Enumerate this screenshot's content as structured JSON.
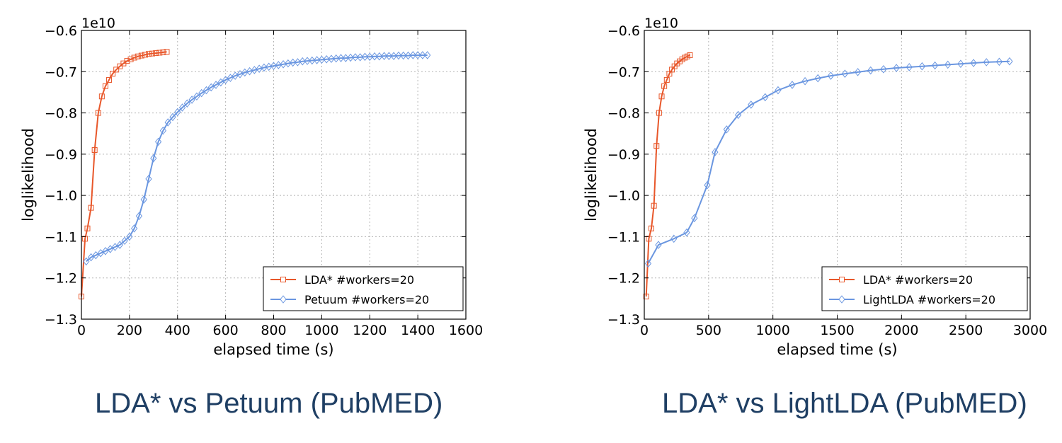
{
  "chart_data": [
    {
      "type": "line",
      "caption": "LDA* vs Petuum (PubMED)",
      "xlabel": "elapsed time (s)",
      "ylabel": "loglikelihood",
      "offset_text": "1e10",
      "xlim": [
        0,
        1600
      ],
      "ylim": [
        -1.3,
        -0.6
      ],
      "xticks": [
        0,
        200,
        400,
        600,
        800,
        1000,
        1200,
        1400,
        1600
      ],
      "xtick_labels": [
        "0",
        "200",
        "400",
        "600",
        "800",
        "1000",
        "1200",
        "1400",
        "1600"
      ],
      "yticks": [
        -1.3,
        -1.2,
        -1.1,
        -1.0,
        -0.9,
        -0.8,
        -0.7,
        -0.6
      ],
      "ytick_labels": [
        "−1.3",
        "−1.2",
        "−1.1",
        "−1.0",
        "−0.9",
        "−0.8",
        "−0.7",
        "−0.6"
      ],
      "grid": true,
      "legend_position": "lower-right",
      "series": [
        {
          "name": "LDA* #workers=20",
          "color": "#e8572a",
          "marker": "square",
          "x": [
            0,
            15,
            25,
            40,
            55,
            70,
            85,
            100,
            115,
            130,
            145,
            160,
            175,
            190,
            205,
            220,
            235,
            250,
            265,
            280,
            295,
            310,
            325,
            340,
            355
          ],
          "y": [
            -1.245,
            -1.105,
            -1.08,
            -1.03,
            -0.89,
            -0.8,
            -0.76,
            -0.735,
            -0.72,
            -0.705,
            -0.695,
            -0.687,
            -0.68,
            -0.674,
            -0.67,
            -0.666,
            -0.663,
            -0.661,
            -0.659,
            -0.657,
            -0.656,
            -0.655,
            -0.654,
            -0.653,
            -0.652
          ]
        },
        {
          "name": "Petuum #workers=20",
          "color": "#6a96e0",
          "marker": "diamond",
          "x": [
            20,
            40,
            60,
            80,
            100,
            120,
            140,
            160,
            180,
            200,
            220,
            240,
            260,
            280,
            300,
            320,
            340,
            360,
            380,
            400,
            420,
            440,
            460,
            480,
            500,
            520,
            540,
            560,
            580,
            600,
            620,
            640,
            660,
            680,
            700,
            720,
            740,
            760,
            780,
            800,
            820,
            840,
            860,
            880,
            900,
            920,
            940,
            960,
            980,
            1000,
            1020,
            1040,
            1060,
            1080,
            1100,
            1120,
            1140,
            1160,
            1180,
            1200,
            1220,
            1240,
            1260,
            1280,
            1300,
            1320,
            1340,
            1360,
            1380,
            1400,
            1420,
            1440
          ],
          "y": [
            -1.16,
            -1.15,
            -1.145,
            -1.14,
            -1.135,
            -1.13,
            -1.125,
            -1.12,
            -1.11,
            -1.1,
            -1.08,
            -1.05,
            -1.01,
            -0.96,
            -0.91,
            -0.87,
            -0.843,
            -0.823,
            -0.81,
            -0.798,
            -0.787,
            -0.777,
            -0.768,
            -0.76,
            -0.752,
            -0.745,
            -0.738,
            -0.732,
            -0.726,
            -0.72,
            -0.715,
            -0.71,
            -0.706,
            -0.702,
            -0.699,
            -0.696,
            -0.693,
            -0.69,
            -0.688,
            -0.686,
            -0.684,
            -0.682,
            -0.68,
            -0.678,
            -0.677,
            -0.675,
            -0.674,
            -0.673,
            -0.672,
            -0.671,
            -0.67,
            -0.669,
            -0.668,
            -0.667,
            -0.667,
            -0.666,
            -0.665,
            -0.665,
            -0.664,
            -0.664,
            -0.663,
            -0.663,
            -0.662,
            -0.662,
            -0.662,
            -0.661,
            -0.661,
            -0.661,
            -0.66,
            -0.66,
            -0.66,
            -0.66
          ]
        }
      ]
    },
    {
      "type": "line",
      "caption": "LDA* vs LightLDA (PubMED)",
      "xlabel": "elapsed time (s)",
      "ylabel": "loglikelihood",
      "offset_text": "1e10",
      "xlim": [
        0,
        3000
      ],
      "ylim": [
        -1.3,
        -0.6
      ],
      "xticks": [
        0,
        500,
        1000,
        1500,
        2000,
        2500,
        3000
      ],
      "xtick_labels": [
        "0",
        "500",
        "1000",
        "1500",
        "2000",
        "2500",
        "3000"
      ],
      "yticks": [
        -1.3,
        -1.2,
        -1.1,
        -1.0,
        -0.9,
        -0.8,
        -0.7,
        -0.6
      ],
      "ytick_labels": [
        "−1.3",
        "−1.2",
        "−1.1",
        "−1.0",
        "−0.9",
        "−0.8",
        "−0.7",
        "−0.6"
      ],
      "grid": true,
      "legend_position": "lower-right",
      "series": [
        {
          "name": "LDA* #workers=20",
          "color": "#e8572a",
          "marker": "square",
          "x": [
            15,
            35,
            55,
            75,
            95,
            115,
            135,
            155,
            175,
            195,
            215,
            235,
            255,
            275,
            295,
            315,
            335,
            355
          ],
          "y": [
            -1.245,
            -1.105,
            -1.08,
            -1.025,
            -0.88,
            -0.8,
            -0.76,
            -0.735,
            -0.72,
            -0.705,
            -0.695,
            -0.687,
            -0.68,
            -0.675,
            -0.67,
            -0.666,
            -0.663,
            -0.66
          ]
        },
        {
          "name": "LightLDA #workers=20",
          "color": "#6a96e0",
          "marker": "diamond",
          "x": [
            30,
            110,
            230,
            330,
            390,
            490,
            550,
            640,
            730,
            830,
            940,
            1040,
            1150,
            1250,
            1350,
            1450,
            1560,
            1660,
            1760,
            1860,
            1960,
            2060,
            2160,
            2260,
            2360,
            2460,
            2560,
            2660,
            2760,
            2840
          ],
          "y": [
            -1.165,
            -1.12,
            -1.105,
            -1.09,
            -1.055,
            -0.975,
            -0.895,
            -0.84,
            -0.805,
            -0.78,
            -0.762,
            -0.745,
            -0.732,
            -0.723,
            -0.716,
            -0.71,
            -0.705,
            -0.701,
            -0.697,
            -0.694,
            -0.691,
            -0.689,
            -0.687,
            -0.685,
            -0.683,
            -0.681,
            -0.679,
            -0.677,
            -0.676,
            -0.675
          ]
        }
      ]
    }
  ]
}
